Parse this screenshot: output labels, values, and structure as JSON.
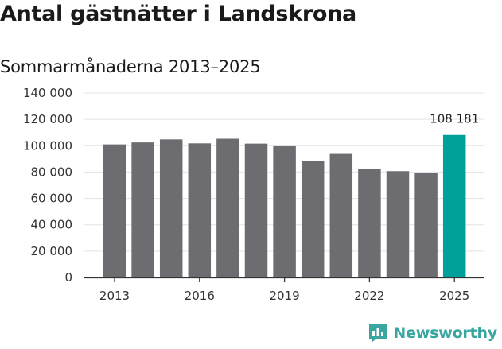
{
  "header": {
    "title": "Antal gästnätter i Landskrona",
    "subtitle": "Sommarmånaderna 2013–2025"
  },
  "branding": {
    "logo_text": "Newsworthy",
    "logo_icon": "bar-chart-speech-bubble-icon",
    "logo_color": "#3aa6a0"
  },
  "colors": {
    "bar_default": "#6d6c71",
    "bar_highlight": "#00a19a",
    "grid": "#e3e3e3",
    "axis": "#333333"
  },
  "chart_data": {
    "type": "bar",
    "categories": [
      "2013",
      "2014",
      "2015",
      "2016",
      "2017",
      "2018",
      "2019",
      "2020",
      "2021",
      "2022",
      "2023",
      "2024",
      "2025"
    ],
    "values": [
      101000,
      102500,
      104800,
      101800,
      105300,
      101600,
      99600,
      88300,
      93800,
      82400,
      80700,
      79400,
      108181
    ],
    "highlight_index": 12,
    "data_labels": [
      {
        "index": 12,
        "text": "108 181"
      }
    ],
    "x_tick_labels": [
      "2013",
      "2016",
      "2019",
      "2022",
      "2025"
    ],
    "y_ticks": [
      0,
      20000,
      40000,
      60000,
      80000,
      100000,
      120000,
      140000
    ],
    "y_tick_labels": [
      "0",
      "20 000",
      "40 000",
      "60 000",
      "80 000",
      "100 000",
      "120 000",
      "140 000"
    ],
    "ylim": [
      0,
      140000
    ],
    "title": "Antal gästnätter i Landskrona",
    "subtitle": "Sommarmånaderna 2013–2025",
    "xlabel": "",
    "ylabel": "",
    "grid": "horizontal",
    "legend": "none"
  }
}
